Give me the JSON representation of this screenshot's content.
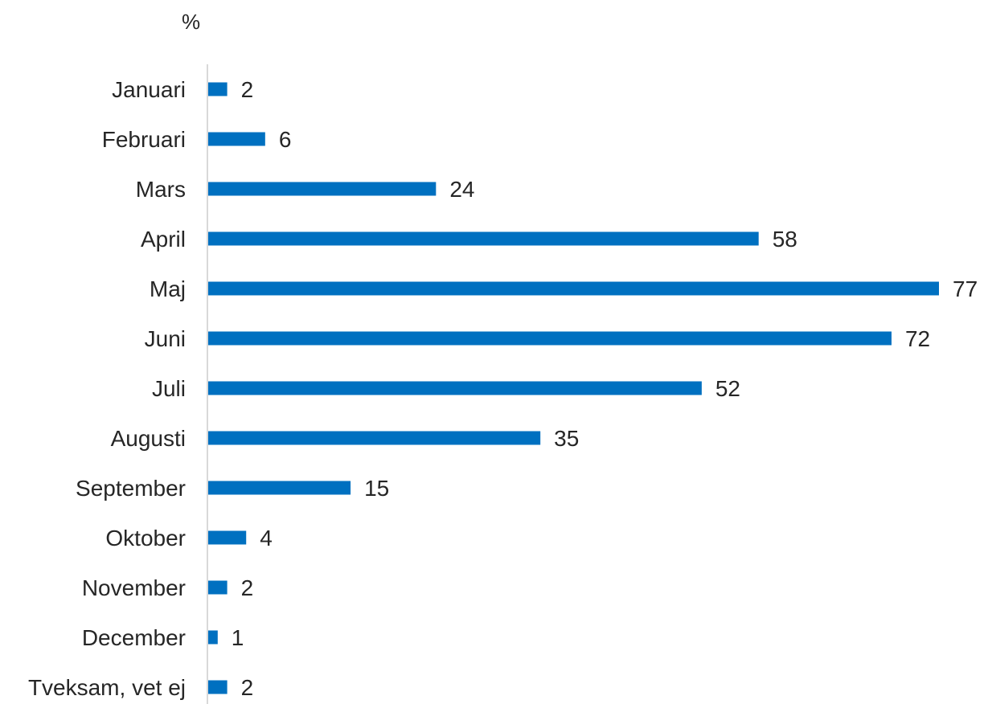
{
  "chart_data": {
    "type": "bar",
    "orientation": "horizontal",
    "unit_label": "%",
    "categories": [
      "Januari",
      "Februari",
      "Mars",
      "April",
      "Maj",
      "Juni",
      "Juli",
      "Augusti",
      "September",
      "Oktober",
      "November",
      "December",
      "Tveksam, vet ej"
    ],
    "values": [
      2,
      6,
      24,
      58,
      77,
      72,
      52,
      35,
      15,
      4,
      2,
      1,
      2
    ],
    "xlim": [
      0,
      77
    ],
    "grid": false,
    "legend": "none",
    "bar_color": "#0070C0",
    "axis_color": "#D9D9D9"
  }
}
